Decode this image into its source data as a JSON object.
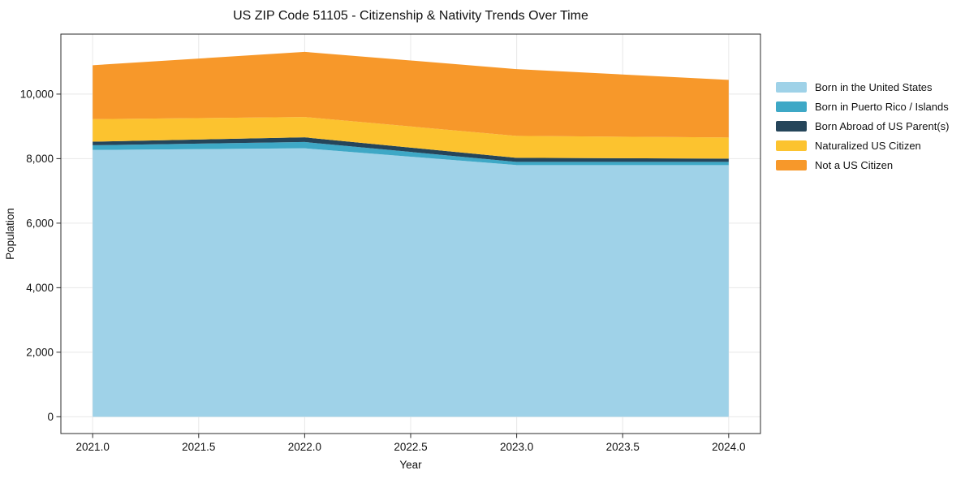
{
  "chart_data": {
    "type": "area",
    "stacked": true,
    "title": "US ZIP Code 51105 - Citizenship & Nativity Trends Over Time",
    "xlabel": "Year",
    "ylabel": "Population",
    "x": [
      2021.0,
      2022.0,
      2023.0,
      2024.0
    ],
    "series": [
      {
        "name": "Born in the United States",
        "color": "#9fd2e8",
        "values": [
          8270,
          8320,
          7800,
          7800
        ]
      },
      {
        "name": "Born in Puerto Rico / Islands",
        "color": "#3ea8c6",
        "values": [
          145,
          195,
          100,
          100
        ]
      },
      {
        "name": "Born Abroad of US Parent(s)",
        "color": "#25455a",
        "values": [
          110,
          145,
          125,
          100
        ]
      },
      {
        "name": "Naturalized US Citizen",
        "color": "#fcc32f",
        "values": [
          700,
          630,
          680,
          655
        ]
      },
      {
        "name": "Not a US Citizen",
        "color": "#f7982a",
        "values": [
          1670,
          2020,
          2070,
          1785
        ]
      }
    ],
    "stacked_totals": [
      10895,
      11310,
      10775,
      10440
    ],
    "x_ticks": {
      "values": [
        2021.0,
        2021.5,
        2022.0,
        2022.5,
        2023.0,
        2023.5,
        2024.0
      ],
      "labels": [
        "2021.0",
        "2021.5",
        "2022.0",
        "2022.5",
        "2023.0",
        "2023.5",
        "2024.0"
      ]
    },
    "y_ticks": {
      "values": [
        0,
        2000,
        4000,
        6000,
        8000,
        10000
      ],
      "labels": [
        "0",
        "2,000",
        "4,000",
        "6,000",
        "8,000",
        "10,000"
      ]
    },
    "xlim": [
      2020.85,
      2024.15
    ],
    "ylim": [
      -520,
      11860
    ],
    "grid": true,
    "legend_position": "right-outside",
    "colors": {
      "background": "#ffffff",
      "axis": "#2b2b2b",
      "grid": "#e8e8e8",
      "text": "#111111"
    }
  }
}
